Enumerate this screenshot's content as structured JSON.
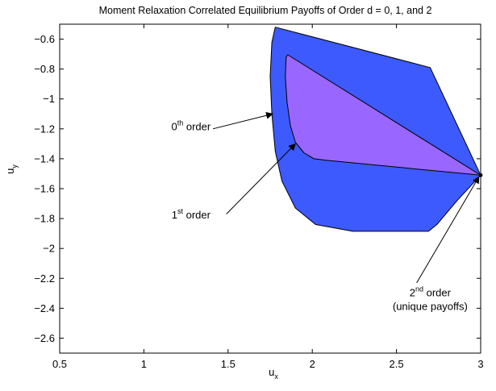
{
  "chart_data": {
    "type": "area",
    "title": "Moment Relaxation Correlated Equilibrium Payoffs of Order d = 0, 1, and 2",
    "xlabel": "u",
    "xlabel_sub": "x",
    "ylabel": "u",
    "ylabel_sub": "y",
    "xlim": [
      0.5,
      3
    ],
    "ylim": [
      -2.7,
      -0.5
    ],
    "grid": false,
    "xticks": [
      0.5,
      1,
      1.5,
      2,
      2.5,
      3
    ],
    "xtick_labels": [
      "0.5",
      "1",
      "1.5",
      "2",
      "2.5",
      "3"
    ],
    "yticks": [
      -0.6,
      -0.8,
      -1,
      -1.2,
      -1.4,
      -1.6,
      -1.8,
      -2,
      -2.2,
      -2.4,
      -2.6
    ],
    "ytick_labels": [
      "−0.6",
      "−0.8",
      "−1",
      "−1.2",
      "−1.4",
      "−1.6",
      "−1.8",
      "−2",
      "−2.2",
      "−2.4",
      "−2.6"
    ],
    "series": [
      {
        "color": "#3d5afe",
        "points": [
          [
            1.78,
            -0.52
          ],
          [
            2.7,
            -0.79
          ],
          [
            3.0,
            -1.51
          ],
          [
            2.86,
            -1.68
          ],
          [
            2.74,
            -1.84
          ],
          [
            2.69,
            -1.885
          ],
          [
            2.24,
            -1.885
          ],
          [
            2.02,
            -1.84
          ],
          [
            1.9,
            -1.73
          ],
          [
            1.82,
            -1.55
          ],
          [
            1.78,
            -1.35
          ],
          [
            1.76,
            -1.1
          ],
          [
            1.75,
            -0.85
          ],
          [
            1.76,
            -0.62
          ]
        ]
      },
      {
        "color": "#9966ff",
        "points": [
          [
            1.855,
            -0.705
          ],
          [
            3.0,
            -1.51
          ],
          [
            2.08,
            -1.41
          ],
          [
            2.01,
            -1.4
          ],
          [
            1.95,
            -1.36
          ],
          [
            1.9,
            -1.29
          ],
          [
            1.87,
            -1.18
          ],
          [
            1.85,
            -1.02
          ],
          [
            1.84,
            -0.85
          ],
          [
            1.845,
            -0.72
          ]
        ]
      },
      {
        "color": "#000000",
        "points": [
          [
            3.0,
            -1.51
          ]
        ]
      }
    ],
    "annotations": [
      {
        "base": "0",
        "sup": "th",
        "rest": " order",
        "text_at": [
          1.28,
          -1.21
        ],
        "arrow_from": [
          1.41,
          -1.2
        ],
        "arrow_to": [
          1.765,
          -1.1
        ]
      },
      {
        "base": "1",
        "sup": "st",
        "rest": " order",
        "text_at": [
          1.28,
          -1.8
        ],
        "arrow_from": [
          1.49,
          -1.77
        ],
        "arrow_to": [
          1.9,
          -1.3
        ]
      },
      {
        "base": "2",
        "sup": "nd",
        "rest": " order",
        "line2": "(unique payoffs)",
        "text_at": [
          2.7,
          -2.32
        ],
        "arrow_from": [
          2.62,
          -2.23
        ],
        "arrow_to": [
          2.99,
          -1.52
        ]
      }
    ]
  }
}
